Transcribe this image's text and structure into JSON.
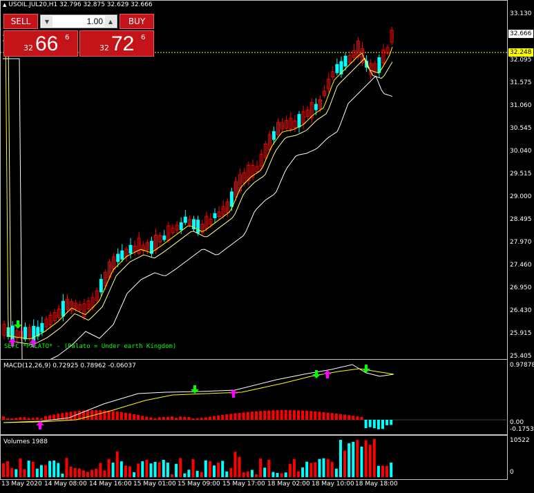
{
  "header": {
    "title": "USOIL.JUL20,H1  32.796 32.875 32.629 32.666",
    "triangle_icon": "triangle-up-icon"
  },
  "trade": {
    "sell_label": "SELL",
    "buy_label": "BUY",
    "lot": "1.00",
    "sell_small": "32",
    "sell_big": "66",
    "sell_sup": "6",
    "buy_small": "32",
    "buy_big": "72",
    "buy_sup": "6"
  },
  "main_chart": {
    "price_labels": [
      "33.130",
      "32.095",
      "31.575",
      "31.060",
      "30.545",
      "30.040",
      "29.515",
      "29.000",
      "28.495",
      "27.970",
      "27.460",
      "26.950",
      "26.430",
      "25.915",
      "25.405"
    ],
    "current_price": "32.666",
    "line_price": "32.248",
    "indicator_text": "SEFC *PALATO* - (Palato = Under earth Kingdom)",
    "colors": {
      "bull": "#00ffff",
      "bear": "#ff0000",
      "ma_fast": "#ffff00",
      "ma_slow": "#ffffff",
      "up_arrow": "#ff00ff",
      "down_arrow": "#00ff00",
      "text": "#00ff00"
    }
  },
  "macd": {
    "title": "MACD(12,26,9) 0.72925 0.78962 -0.06037",
    "scale_top": "0.97878",
    "scale_zero": "0.00",
    "scale_bottom": "-0.17536"
  },
  "volumes": {
    "title": "Volumes 1988",
    "scale_top": "10522",
    "scale_bottom": "0"
  },
  "time_labels": [
    "13 May 2020",
    "14 May 08:00",
    "14 May 16:00",
    "15 May 01:00",
    "15 May 09:00",
    "15 May 17:00",
    "18 May 02:00",
    "18 May 10:00",
    "18 May 18:00"
  ]
}
